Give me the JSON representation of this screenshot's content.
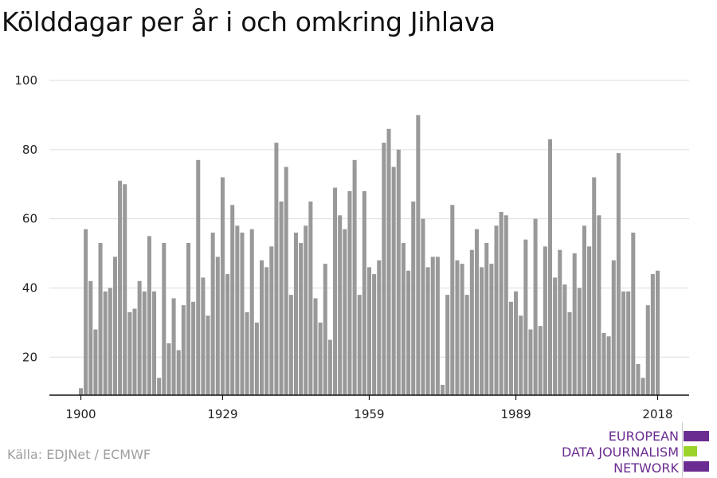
{
  "title": "Kölddagar per år i och omkring Jihlava",
  "source": "Källa: EDJNet / ECMWF",
  "logo": {
    "lines": [
      "EUROPEAN",
      "DATA JOURNALISM",
      "NETWORK"
    ],
    "colors": {
      "purple": "#6a2c91",
      "green": "#9bd32b"
    }
  },
  "chart_data": {
    "type": "bar",
    "title": "Kölddagar per år i och omkring Jihlava",
    "xlabel": "",
    "ylabel": "",
    "bar_color": "#999999",
    "grid": true,
    "ylim": [
      9,
      103
    ],
    "yticks": [
      20,
      40,
      60,
      80,
      100
    ],
    "xticks": [
      1900,
      1929,
      1959,
      1989,
      2018
    ],
    "x": [
      1900,
      1901,
      1902,
      1903,
      1904,
      1905,
      1906,
      1907,
      1908,
      1909,
      1910,
      1911,
      1912,
      1913,
      1914,
      1915,
      1916,
      1917,
      1918,
      1919,
      1920,
      1921,
      1922,
      1923,
      1924,
      1925,
      1926,
      1927,
      1928,
      1929,
      1930,
      1931,
      1932,
      1933,
      1934,
      1935,
      1936,
      1937,
      1938,
      1939,
      1940,
      1941,
      1942,
      1943,
      1944,
      1945,
      1946,
      1947,
      1948,
      1949,
      1950,
      1951,
      1952,
      1953,
      1954,
      1955,
      1956,
      1957,
      1958,
      1959,
      1960,
      1961,
      1962,
      1963,
      1964,
      1965,
      1966,
      1967,
      1968,
      1969,
      1970,
      1971,
      1972,
      1973,
      1974,
      1975,
      1976,
      1977,
      1978,
      1979,
      1980,
      1981,
      1982,
      1983,
      1984,
      1985,
      1986,
      1987,
      1988,
      1989,
      1990,
      1991,
      1992,
      1993,
      1994,
      1995,
      1996,
      1997,
      1998,
      1999,
      2000,
      2001,
      2002,
      2003,
      2004,
      2005,
      2006,
      2007,
      2008,
      2009,
      2010,
      2011,
      2012,
      2013,
      2014,
      2015,
      2016,
      2017,
      2018
    ],
    "values": [
      11,
      57,
      42,
      28,
      53,
      39,
      40,
      49,
      71,
      70,
      33,
      34,
      42,
      39,
      55,
      39,
      14,
      53,
      24,
      37,
      22,
      35,
      53,
      36,
      77,
      43,
      32,
      56,
      49,
      72,
      44,
      64,
      58,
      56,
      33,
      57,
      30,
      48,
      46,
      52,
      82,
      65,
      75,
      38,
      56,
      53,
      58,
      65,
      37,
      30,
      47,
      25,
      69,
      61,
      57,
      68,
      77,
      38,
      68,
      46,
      44,
      48,
      82,
      86,
      75,
      80,
      53,
      45,
      65,
      90,
      60,
      46,
      49,
      49,
      12,
      38,
      64,
      48,
      47,
      38,
      51,
      57,
      46,
      53,
      47,
      58,
      62,
      61,
      36,
      39,
      32,
      54,
      28,
      60,
      29,
      52,
      83,
      43,
      51,
      41,
      33,
      50,
      40,
      58,
      52,
      72,
      61,
      27,
      26,
      48,
      79,
      39,
      39,
      56,
      18,
      14,
      35,
      44,
      45
    ]
  }
}
